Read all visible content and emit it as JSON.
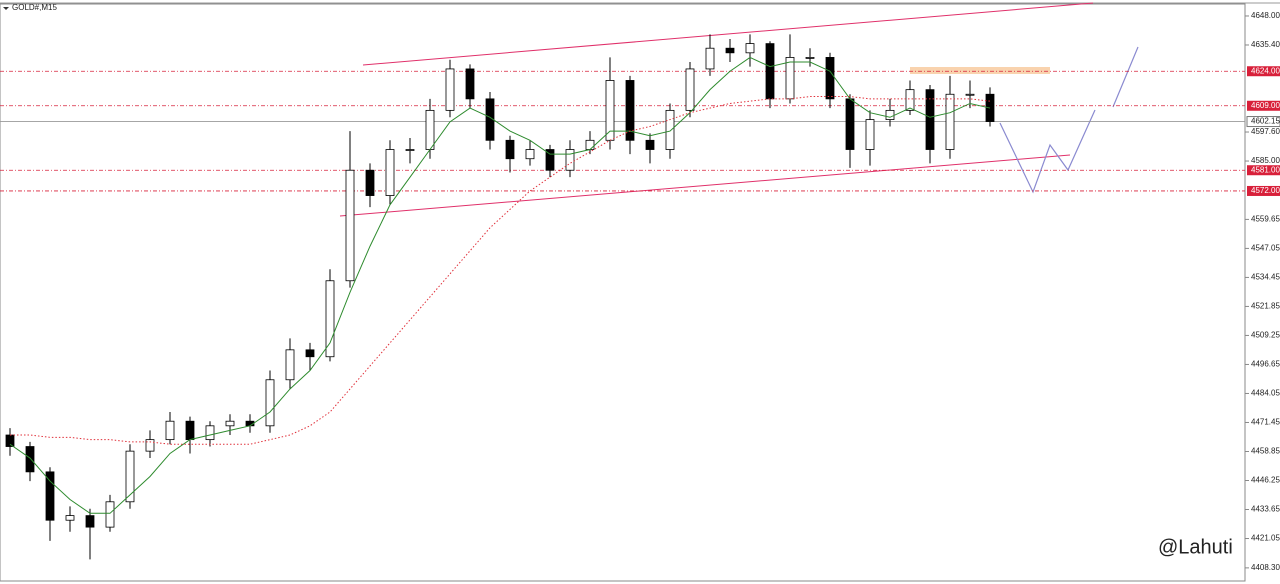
{
  "chart_data": {
    "type": "candlestick",
    "title": "GOLD#,M15",
    "watermark": "@Lahuti",
    "open": [
      4466,
      4461,
      4450,
      4429,
      4431,
      4426,
      4437,
      4459,
      4464,
      4472,
      4464,
      4470,
      4472,
      4470,
      4490,
      4503,
      4500,
      4533,
      4581,
      4570,
      4590,
      4590,
      4607,
      4625,
      4612,
      4594,
      4586,
      4590,
      4581,
      4590,
      4594,
      4620,
      4594,
      4590,
      4607,
      4625,
      4634,
      4632,
      4636,
      4612,
      4630,
      4630,
      4612,
      4590,
      4603,
      4607,
      4616,
      4590,
      4614,
      4614
    ],
    "high": [
      4469,
      4463,
      4452,
      4435,
      4434,
      4440,
      4462,
      4468,
      4476,
      4474,
      4472,
      4475,
      4475,
      4494,
      4508,
      4506,
      4538,
      4598,
      4584,
      4594,
      4595,
      4612,
      4629,
      4627,
      4615,
      4596,
      4594,
      4592,
      4594,
      4598,
      4630,
      4622,
      4597,
      4610,
      4628,
      4640,
      4638,
      4640,
      4637,
      4640,
      4634,
      4632,
      4614,
      4607,
      4612,
      4620,
      4618,
      4622,
      4620,
      4617
    ],
    "low": [
      4457,
      4446,
      4420,
      4424,
      4412,
      4424,
      4434,
      4456,
      4462,
      4458,
      4461,
      4466,
      4467,
      4467,
      4486,
      4494,
      4498,
      4530,
      4565,
      4566,
      4584,
      4586,
      4604,
      4608,
      4590,
      4580,
      4583,
      4578,
      4578,
      4588,
      4590,
      4588,
      4584,
      4586,
      4604,
      4622,
      4628,
      4626,
      4608,
      4610,
      4626,
      4608,
      4582,
      4583,
      4600,
      4605,
      4584,
      4586,
      4608,
      4600
    ],
    "close": [
      4461,
      4450,
      4429,
      4431,
      4426,
      4437,
      4459,
      4464,
      4472,
      4464,
      4470,
      4472,
      4470,
      4490,
      4503,
      4500,
      4533,
      4581,
      4570,
      4590,
      4590,
      4607,
      4625,
      4612,
      4594,
      4586,
      4590,
      4581,
      4590,
      4594,
      4620,
      4594,
      4590,
      4607,
      4625,
      4634,
      4632,
      4636,
      4612,
      4630,
      4630,
      4612,
      4590,
      4603,
      4607,
      4616,
      4590,
      4614,
      4614,
      4602.15
    ],
    "series": [
      {
        "color": "#2e8b2e",
        "style": "solid",
        "values": [
          4462,
          4456,
          4446,
          4438,
          4432,
          4432,
          4440,
          4448,
          4458,
          4464,
          4466,
          4468,
          4470,
          4476,
          4486,
          4494,
          4506,
          4528,
          4548,
          4566,
          4578,
          4590,
          4602,
          4608,
          4604,
          4598,
          4594,
          4588,
          4588,
          4590,
          4598,
          4598,
          4596,
          4598,
          4606,
          4616,
          4624,
          4630,
          4626,
          4628,
          4628,
          4624,
          4612,
          4606,
          4604,
          4608,
          4604,
          4606,
          4610,
          4608
        ]
      },
      {
        "color": "#e0303a",
        "style": "dotted",
        "values": [
          4466,
          4466,
          4465,
          4465,
          4464,
          4464,
          4463,
          4463,
          4462,
          4462,
          4462,
          4462,
          4462,
          4464,
          4466,
          4470,
          4476,
          4486,
          4496,
          4506,
          4516,
          4526,
          4536,
          4546,
          4556,
          4564,
          4572,
          4578,
          4584,
          4589,
          4594,
          4598,
          4600,
          4603,
          4606,
          4608,
          4610,
          4611,
          4612,
          4612,
          4613,
          4613,
          4613,
          4612,
          4612,
          4612,
          4612,
          4612,
          4612,
          4611
        ]
      }
    ],
    "levels": [
      {
        "value": 4624,
        "label": "4624.00"
      },
      {
        "value": 4609,
        "label": "4609.00"
      },
      {
        "value": 4581,
        "label": "4581.00"
      },
      {
        "value": 4572,
        "label": "4572.00"
      }
    ],
    "level_color": "#d8203a",
    "current_price": {
      "value": 4602.15,
      "label": "4602.15"
    },
    "ylim": [
      4402.6,
      4653.2
    ],
    "yticks": [
      {
        "value": 4648,
        "label": "4648.00"
      },
      {
        "value": 4635.4,
        "label": "4635.40"
      },
      {
        "value": 4597.6,
        "label": "4597.60"
      },
      {
        "value": 4585,
        "label": "4585.00"
      },
      {
        "value": 4559.65,
        "label": "4559.65"
      },
      {
        "value": 4547.05,
        "label": "4547.05"
      },
      {
        "value": 4534.45,
        "label": "4534.45"
      },
      {
        "value": 4521.85,
        "label": "4521.85"
      },
      {
        "value": 4509.25,
        "label": "4509.25"
      },
      {
        "value": 4496.65,
        "label": "4496.65"
      },
      {
        "value": 4484.05,
        "label": "4484.05"
      },
      {
        "value": 4471.45,
        "label": "4471.45"
      },
      {
        "value": 4458.85,
        "label": "4458.85"
      },
      {
        "value": 4446.25,
        "label": "4446.25"
      },
      {
        "value": 4433.65,
        "label": "4433.65"
      },
      {
        "value": 4421.05,
        "label": "4421.05"
      },
      {
        "value": 4408.3,
        "label": "4408.30"
      }
    ]
  }
}
